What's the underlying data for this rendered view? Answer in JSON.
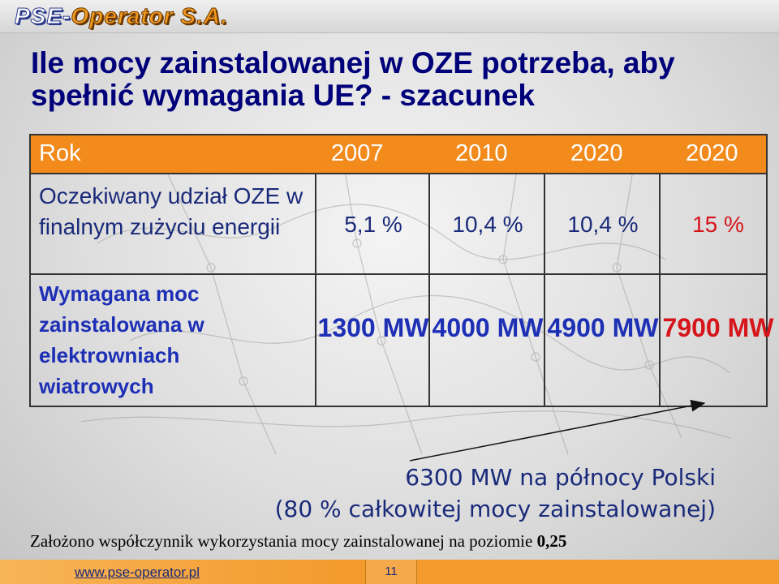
{
  "logo": {
    "pse": "PSE-",
    "rest": "Operator S.A."
  },
  "slide": {
    "title": "Ile mocy zainstalowanej w OZE potrzeba, aby spełnić wymagania UE? - szacunek"
  },
  "table": {
    "header_label": "Rok",
    "years": [
      "2007",
      "2010",
      "2020",
      "2020"
    ],
    "share_row": {
      "label": "Oczekiwany udział OZE w finalnym zużyciu energii",
      "values": [
        "5,1 %",
        "10,4 %",
        "10,4 %",
        "15 %"
      ]
    },
    "wind_row": {
      "label": "Wymagana moc zainstalowana w elektrowniach wiatrowych",
      "values": [
        "1300 MW",
        "4000 MW",
        "4900 MW",
        "7900 MW"
      ]
    }
  },
  "notes": {
    "north": "6300 MW na północy Polski",
    "percent": "(80 % całkowitej mocy zainstalowanej)"
  },
  "assumption": {
    "text": "Założono współczynnik wykorzystania mocy zainstalowanej na poziomie ",
    "value": "0,25"
  },
  "footer": {
    "url": "www.pse-operator.pl",
    "page": "11"
  },
  "colors": {
    "header_orange": "#f28a1c",
    "title_navy": "#00007a",
    "highlight_red": "#d6151b",
    "wind_blue": "#1d2fb5"
  }
}
